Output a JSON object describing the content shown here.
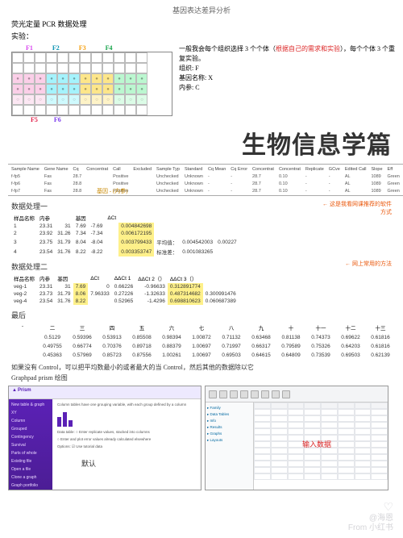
{
  "header": {
    "page_title": "基因表达差异分析",
    "subtitle": "荧光定量 PCR 数据处理",
    "exp_label": "实验："
  },
  "plate": {
    "top_labels": [
      "F1",
      "F2",
      "F3",
      "F4"
    ],
    "bottom_labels": [
      "F5",
      "F6"
    ]
  },
  "notes": {
    "line1_pre": "一般我会每个组织选择 3 个个体（",
    "line1_red": "根据自己的需求和实验",
    "line1_post": "），每个个体 3 个重复实验。",
    "line2": "组织: F",
    "line3": "基因名称: X",
    "line4": "内参: C"
  },
  "big_heading": "生物信息学篇",
  "sample_table": {
    "headers": [
      "Sample Name",
      "Gene Name",
      "Cq",
      "Concentrat",
      "Call",
      "Excluded",
      "Sample Typ",
      "Standard",
      "Cq Mean",
      "Cq Error",
      "Concentrat",
      "Concentrat",
      "Replicate",
      "GCve",
      "Edited Call",
      "Slope",
      "Eff",
      "Failure",
      "Notes",
      "Sample Pre",
      "Number"
    ],
    "rows": [
      [
        "f-fp5",
        "Fas",
        "28.7",
        "",
        "Positive",
        "",
        "Unchecked",
        "Unknown",
        "-",
        "-",
        "28.7",
        "0.10",
        "-",
        "-",
        "AL",
        "1089",
        "Green",
        "",
        "5.97",
        "490",
        "None"
      ],
      [
        "f-fp6",
        "Fas",
        "28.8",
        "",
        "Positive",
        "",
        "Unchecked",
        "Unknown",
        "-",
        "-",
        "28.7",
        "0.10",
        "-",
        "-",
        "AL",
        "1089",
        "Green",
        "",
        "5.97",
        "490",
        "None"
      ],
      [
        "f-fp7",
        "Fas",
        "28.8",
        "",
        "Positive",
        "",
        "Unchecked",
        "Unknown",
        "-",
        "-",
        "28.7",
        "0.10",
        "-",
        "-",
        "AL",
        "1089",
        "Green",
        "",
        "5.97",
        "490",
        "None"
      ]
    ]
  },
  "method1": {
    "title": "数据处理一",
    "anno_center": "基因 - (内参)",
    "anno_right": "这是我看网课推荐的软件方式",
    "headers": [
      "样品名称",
      "内参",
      "",
      "基因",
      "",
      "ΔCt",
      "",
      "",
      ""
    ],
    "rows": [
      [
        "1",
        "23.31",
        "31",
        "7.69",
        "-7.69",
        "",
        "0.004842698",
        "",
        ""
      ],
      [
        "2",
        "23.92",
        "31.26",
        "7.34",
        "-7.34",
        "",
        "0.006172195",
        "",
        ""
      ],
      [
        "3",
        "23.75",
        "31.79",
        "8.04",
        "-8.04",
        "",
        "0.003799433",
        "平均值：",
        "0.004542003",
        "0.00227"
      ],
      [
        "4",
        "23.54",
        "31.76",
        "8.22",
        "-8.22",
        "",
        "0.003353747",
        "标准差：",
        "0.001083265",
        ""
      ]
    ]
  },
  "method2": {
    "title": "数据处理二",
    "anno_right": "网上常用的方法",
    "headers": [
      "样品名称",
      "内参",
      "基因",
      "",
      "ΔCt",
      "ΔΔCt 1",
      "ΔΔCt 2（）",
      "ΔΔCt 3（）"
    ],
    "rows": [
      [
        "veg-1",
        "23.31",
        "31",
        "7.69",
        "0",
        "0.66226",
        "-0.96633",
        "0.312891774"
      ],
      [
        "veg-2",
        "23.73",
        "31.79",
        "8.06",
        "7.96333",
        "0.27226",
        "-1.32633",
        "0.487314682",
        "0.300991476"
      ],
      [
        "veg-4",
        "23.54",
        "31.76",
        "8.22",
        "",
        "0.52965",
        "-1.4296",
        "0.698810623",
        "0.060687389"
      ]
    ]
  },
  "final": {
    "title": "最后",
    "headers": [
      "-",
      "二",
      "三",
      "四",
      "五",
      "六",
      "七",
      "八",
      "九",
      "十",
      "十一",
      "十二",
      "十三"
    ],
    "r1": [
      "0.5129",
      "0.59396",
      "0.53913",
      "0.85508",
      "0.98394",
      "1.00872",
      "0.71132",
      "0.63468",
      "0.81138",
      "0.74373",
      "0.69622",
      "0.61816"
    ],
    "r2": [
      "0.49755",
      "0.66774",
      "0.70376",
      "0.89718",
      "0.88379",
      "1.00697",
      "0.71997",
      "0.66317",
      "0.79589",
      "0.75326",
      "0.64203",
      "0.61816"
    ],
    "r3": [
      "0.45363",
      "0.57969",
      "0.85723",
      "0.87556",
      "1.00261",
      "1.00697",
      "0.69503",
      "0.64615",
      "0.64809",
      "0.73539",
      "0.69503",
      "0.62139"
    ]
  },
  "footer_note": "如果没有 Control，可以把平均数最小的或者最大的当 Control，然后其他的数据除以它",
  "prism": {
    "label": "Graphpad prism 绘图",
    "logo": "Prism",
    "sidebar_items": [
      "New table & graph",
      "XY",
      "Column",
      "Grouped",
      "Contingency",
      "Survival",
      "Parts of whole",
      "Existing file",
      "Open a file",
      "Clone a graph",
      "Graph portfolio"
    ],
    "main_title": "Column tables have one grouping variable, with each group defined by a column",
    "desc1": "Data table: ○ Enter replicate values, stacked into columns",
    "desc2": "○ Enter and plot error values already calculated elsewhere",
    "desc3": "Options: ☑ Use tutorial data",
    "default_label": "默认",
    "input_label": "输入数据",
    "nav_items": [
      "Family",
      "Data Tables",
      "Info",
      "Results",
      "Graphs",
      "Layouts"
    ]
  },
  "watermark": {
    "user": "@海恩",
    "from": "From 小红书"
  },
  "colors": {
    "highlight": "#fef08a",
    "accent_red": "#dc2626",
    "accent_orange": "#ea580c",
    "prism_purple": "#5b21b6"
  }
}
